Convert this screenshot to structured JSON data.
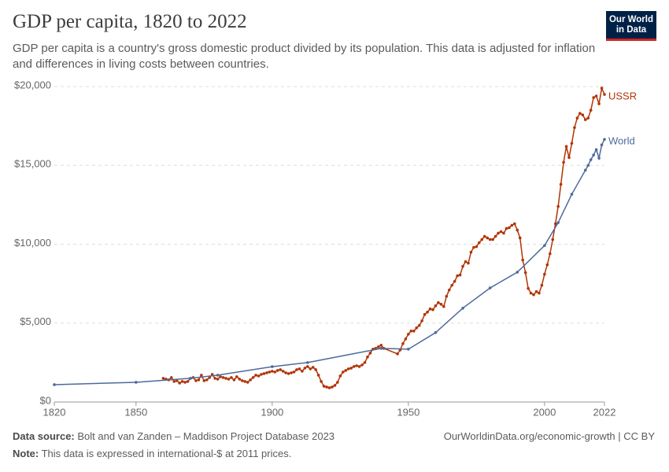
{
  "chart_data": {
    "type": "line",
    "title": "GDP per capita, 1820 to 2022",
    "subtitle": "GDP per capita is a country's gross domestic product divided by its population. This data is adjusted for inflation and differences in living costs between countries.",
    "logo": "Our World in Data",
    "source_label": "Data source:",
    "source": "Bolt and van Zanden – Maddison Project Database 2023",
    "url": "OurWorldinData.org/economic-growth | CC BY",
    "note_label": "Note:",
    "note": "This data is expressed in international-$ at 2011 prices.",
    "xlim": [
      1820,
      2022
    ],
    "xticks": [
      1820,
      1850,
      1900,
      1950,
      2000,
      2022
    ],
    "ylim": [
      0,
      20000
    ],
    "yticks": [
      {
        "value": 0,
        "label": "$0"
      },
      {
        "value": 5000,
        "label": "$5,000"
      },
      {
        "value": 10000,
        "label": "$10,000"
      },
      {
        "value": 15000,
        "label": "$15,000"
      },
      {
        "value": 20000,
        "label": "$20,000"
      }
    ],
    "grid": true,
    "series": [
      {
        "name": "USSR",
        "color": "#b13507",
        "x": [
          1860,
          1861,
          1862,
          1863,
          1864,
          1865,
          1866,
          1867,
          1868,
          1869,
          1870,
          1871,
          1872,
          1873,
          1874,
          1875,
          1876,
          1877,
          1878,
          1879,
          1880,
          1881,
          1882,
          1883,
          1884,
          1885,
          1886,
          1887,
          1888,
          1889,
          1890,
          1891,
          1892,
          1893,
          1894,
          1895,
          1896,
          1897,
          1898,
          1899,
          1900,
          1901,
          1902,
          1903,
          1904,
          1905,
          1906,
          1907,
          1908,
          1909,
          1910,
          1911,
          1912,
          1913,
          1914,
          1915,
          1916,
          1917,
          1918,
          1919,
          1920,
          1921,
          1922,
          1923,
          1924,
          1925,
          1926,
          1927,
          1928,
          1929,
          1930,
          1931,
          1932,
          1933,
          1934,
          1935,
          1936,
          1937,
          1938,
          1939,
          1940,
          1941,
          1946,
          1947,
          1948,
          1949,
          1950,
          1951,
          1952,
          1953,
          1954,
          1955,
          1956,
          1957,
          1958,
          1959,
          1960,
          1961,
          1962,
          1963,
          1964,
          1965,
          1966,
          1967,
          1968,
          1969,
          1970,
          1971,
          1972,
          1973,
          1974,
          1975,
          1976,
          1977,
          1978,
          1979,
          1980,
          1981,
          1982,
          1983,
          1984,
          1985,
          1986,
          1987,
          1988,
          1989,
          1990,
          1991,
          1992,
          1993,
          1994,
          1995,
          1996,
          1997,
          1998,
          1999,
          2000,
          2001,
          2002,
          2003,
          2004,
          2005,
          2006,
          2007,
          2008,
          2009,
          2010,
          2011,
          2012,
          2013,
          2014,
          2015,
          2016,
          2017,
          2018,
          2019,
          2020,
          2021,
          2022
        ],
        "values": [
          1500,
          1450,
          1400,
          1550,
          1300,
          1350,
          1200,
          1300,
          1250,
          1300,
          1500,
          1550,
          1350,
          1400,
          1700,
          1350,
          1400,
          1550,
          1750,
          1500,
          1450,
          1600,
          1550,
          1500,
          1450,
          1550,
          1400,
          1600,
          1450,
          1350,
          1300,
          1250,
          1400,
          1550,
          1700,
          1650,
          1750,
          1800,
          1850,
          1900,
          1950,
          1900,
          2000,
          2050,
          1950,
          1850,
          1800,
          1850,
          1900,
          2050,
          2100,
          1950,
          2150,
          2250,
          2100,
          2200,
          2050,
          1700,
          1300,
          1000,
          950,
          900,
          950,
          1050,
          1250,
          1650,
          1900,
          2000,
          2100,
          2150,
          2250,
          2300,
          2250,
          2350,
          2500,
          2850,
          3100,
          3350,
          3400,
          3500,
          3600,
          3400,
          3050,
          3300,
          3700,
          4000,
          4300,
          4500,
          4500,
          4700,
          4850,
          5150,
          5550,
          5700,
          5900,
          5850,
          6100,
          6300,
          6200,
          6050,
          6700,
          7100,
          7400,
          7650,
          8000,
          8050,
          8600,
          8900,
          8800,
          9500,
          9800,
          9850,
          10100,
          10300,
          10500,
          10400,
          10300,
          10300,
          10500,
          10700,
          10800,
          10700,
          11000,
          11050,
          11200,
          11300,
          10900,
          10400,
          9000,
          8200,
          7200,
          6900,
          6800,
          7000,
          6900,
          7400,
          8100,
          8700,
          9400,
          10300,
          11300,
          12400,
          13800,
          15200,
          16200,
          15500,
          16400,
          17400,
          18000,
          18300,
          18200,
          17900,
          18000,
          18500,
          19300,
          19400,
          18900,
          19900,
          19500
        ]
      },
      {
        "name": "World",
        "color": "#4c6a9c",
        "x": [
          1820,
          1850,
          1870,
          1880,
          1900,
          1913,
          1940,
          1950,
          1960,
          1970,
          1980,
          1990,
          2000,
          2005,
          2010,
          2015,
          2016,
          2017,
          2018,
          2019,
          2020,
          2021,
          2022
        ],
        "values": [
          1100,
          1250,
          1500,
          1700,
          2240,
          2500,
          3400,
          3350,
          4400,
          5950,
          7230,
          8230,
          9920,
          11370,
          13170,
          14700,
          15000,
          15360,
          15660,
          16000,
          15460,
          16300,
          16650
        ]
      }
    ]
  }
}
